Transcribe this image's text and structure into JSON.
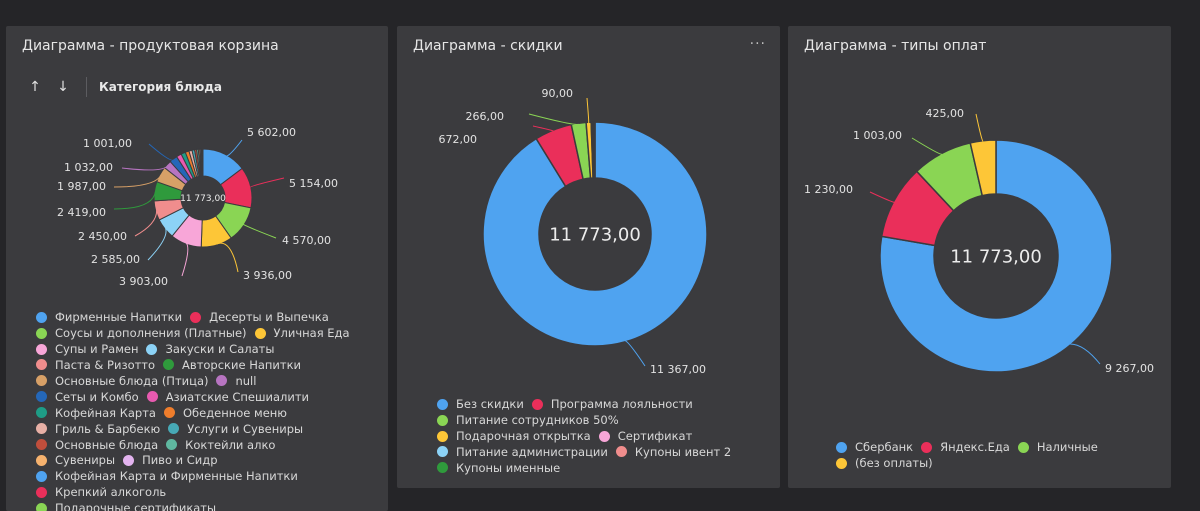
{
  "chart_data": [
    {
      "id": "basket",
      "type": "pie",
      "title": "Диаграмма - продуктовая корзина",
      "sort_label": "Категория блюда",
      "center_label": "11 773,00",
      "total": 11773,
      "series": [
        {
          "name": "Фирменные Напитки",
          "value": 5602,
          "label": "5 602,00",
          "color": "#4fa3f0"
        },
        {
          "name": "Десерты и Выпечка",
          "value": 5154,
          "label": "5 154,00",
          "color": "#ea2f5a"
        },
        {
          "name": "Соусы и дополнения (Платные)",
          "value": 4570,
          "label": "4 570,00",
          "color": "#8ad554"
        },
        {
          "name": "Уличная Еда",
          "value": 3936,
          "label": "3 936,00",
          "color": "#fdc637"
        },
        {
          "name": "Супы и Рамен",
          "value": 3903,
          "label": "3 903,00",
          "color": "#f8a6d8"
        },
        {
          "name": "Закуски и Салаты",
          "value": 2585,
          "label": "2 585,00",
          "color": "#8cd2f6"
        },
        {
          "name": "Паста & Ризотто",
          "value": 2450,
          "label": "2 450,00",
          "color": "#f08d8d"
        },
        {
          "name": "Авторские Напитки",
          "value": 2419,
          "label": "2 419,00",
          "color": "#2f9a3c"
        },
        {
          "name": "Основные блюда (Птица)",
          "value": 1987,
          "label": "1 987,00",
          "color": "#d7a067"
        },
        {
          "name": "null",
          "value": 1032,
          "label": "1 032,00",
          "color": "#b774c1"
        },
        {
          "name": "Сеты и Комбо",
          "value": 1001,
          "label": "1 001,00",
          "color": "#2467b8"
        },
        {
          "name": "Азиатские Спешиалити",
          "value": 650,
          "label": "",
          "color": "#e85ab0"
        },
        {
          "name": "Кофейная Карта",
          "value": 560,
          "label": "",
          "color": "#1e9c86"
        },
        {
          "name": "Обеденное меню",
          "value": 470,
          "label": "",
          "color": "#ef7d2c"
        },
        {
          "name": "Гриль & Барбекю",
          "value": 390,
          "label": "",
          "color": "#e8b0a6"
        },
        {
          "name": "Услуги и Сувениры",
          "value": 320,
          "label": "",
          "color": "#47a9b6"
        },
        {
          "name": "Основные блюда",
          "value": 260,
          "label": "",
          "color": "#c04e3c"
        },
        {
          "name": "Коктейли алко",
          "value": 210,
          "label": "",
          "color": "#5fb8a0"
        },
        {
          "name": "Сувениры",
          "value": 170,
          "label": "",
          "color": "#f6b26e"
        },
        {
          "name": "Пиво и Сидр",
          "value": 140,
          "label": "",
          "color": "#e3b3ef"
        },
        {
          "name": "Кофейная Карта и Фирменные Напитки",
          "value": 110,
          "label": "",
          "color": "#4fa3f0"
        },
        {
          "name": "Крепкий алкоголь",
          "value": 90,
          "label": "",
          "color": "#ea2f5a"
        },
        {
          "name": "Подарочные сертификаты",
          "value": 70,
          "label": "",
          "color": "#8ad554"
        }
      ]
    },
    {
      "id": "discounts",
      "type": "pie",
      "title": "Диаграмма - скидки",
      "center_label": "11 773,00",
      "total": 11773,
      "series": [
        {
          "name": "Без скидки",
          "value": 11367,
          "label": "11 367,00",
          "color": "#4fa3f0"
        },
        {
          "name": "Программа лояльности",
          "value": 672,
          "label": "672,00",
          "color": "#ea2f5a"
        },
        {
          "name": "Питание сотрудников 50%",
          "value": 266,
          "label": "266,00",
          "color": "#8ad554"
        },
        {
          "name": "Подарочная открытка",
          "value": 90,
          "label": "90,00",
          "color": "#fdc637"
        },
        {
          "name": "Сертификат",
          "value": 20,
          "label": "",
          "color": "#f8a6d8"
        },
        {
          "name": "Питание администрации",
          "value": 18,
          "label": "",
          "color": "#8cd2f6"
        },
        {
          "name": "Купоны ивент 2",
          "value": 16,
          "label": "",
          "color": "#f08d8d"
        },
        {
          "name": "Купоны именные",
          "value": 14,
          "label": "",
          "color": "#2f9a3c"
        }
      ]
    },
    {
      "id": "payments",
      "type": "pie",
      "title": "Диаграмма - типы оплат",
      "center_label": "11 773,00",
      "total": 11773,
      "series": [
        {
          "name": "Сбербанк",
          "value": 9267,
          "label": "9 267,00",
          "color": "#4fa3f0"
        },
        {
          "name": "Яндекс.Еда",
          "value": 1230,
          "label": "1 230,00",
          "color": "#ea2f5a"
        },
        {
          "name": "Наличные",
          "value": 1003,
          "label": "1 003,00",
          "color": "#8ad554"
        },
        {
          "name": "(без оплаты)",
          "value": 425,
          "label": "425,00",
          "color": "#fdc637"
        }
      ]
    }
  ],
  "icons": {
    "sort_asc": "↑",
    "sort_desc": "↓",
    "more": "···"
  }
}
